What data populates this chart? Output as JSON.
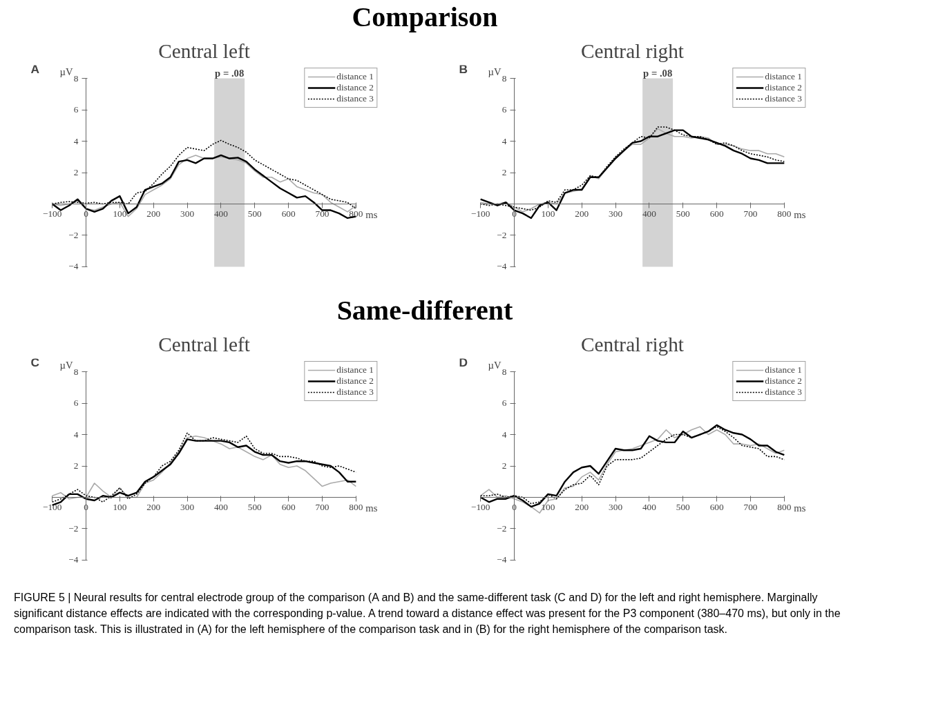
{
  "chart_data": [
    {
      "type": "line",
      "subtitle": "Comparison",
      "title": "Central left",
      "annotations": [
        "A"
      ],
      "x": [
        -100,
        -75,
        -50,
        -25,
        0,
        25,
        50,
        75,
        100,
        125,
        150,
        175,
        200,
        225,
        250,
        275,
        300,
        325,
        350,
        375,
        400,
        425,
        450,
        475,
        500,
        525,
        550,
        575,
        600,
        625,
        650,
        675,
        700,
        725,
        750,
        775,
        800
      ],
      "series": [
        {
          "name": "distance 1",
          "color": "#aaaaaa",
          "line_style": "solid",
          "values": [
            0,
            -0.1,
            0,
            0.2,
            -0.3,
            -0.4,
            -0.2,
            0,
            0.1,
            -0.8,
            -0.3,
            0.6,
            0.9,
            1.2,
            1.6,
            2.5,
            2.9,
            3.1,
            2.9,
            2.9,
            3.0,
            2.9,
            2.8,
            2.6,
            2.1,
            1.7,
            1.7,
            1.4,
            1.6,
            1.1,
            0.9,
            0.7,
            0.6,
            0.1,
            -0.2,
            -0.5,
            -0.1
          ]
        },
        {
          "name": "distance 2",
          "color": "#000000",
          "line_style": "solid",
          "values": [
            0,
            -0.4,
            -0.1,
            0.3,
            -0.3,
            -0.5,
            -0.3,
            0.2,
            0.5,
            -0.6,
            -0.2,
            0.9,
            1.1,
            1.3,
            1.7,
            2.7,
            2.8,
            2.6,
            2.9,
            2.9,
            3.1,
            2.9,
            2.95,
            2.7,
            2.2,
            1.8,
            1.4,
            1.0,
            0.7,
            0.4,
            0.5,
            0.1,
            -0.4,
            -0.4,
            -0.6,
            -0.9,
            -0.8
          ]
        },
        {
          "name": "distance 3",
          "color": "#000000",
          "line_style": "dotted",
          "values": [
            0,
            0.1,
            0.15,
            0.1,
            0.05,
            0.1,
            0,
            0.1,
            0.1,
            0,
            0.7,
            0.8,
            1.3,
            1.9,
            2.4,
            3.1,
            3.6,
            3.5,
            3.4,
            3.8,
            4.05,
            3.8,
            3.6,
            3.3,
            2.8,
            2.5,
            2.2,
            1.9,
            1.6,
            1.5,
            1.2,
            0.9,
            0.6,
            0.3,
            0.2,
            0.1,
            -0.3
          ]
        }
      ],
      "xlim": [
        -100,
        800
      ],
      "ylim": [
        -4,
        8
      ],
      "xticks": [
        -100,
        0,
        100,
        200,
        300,
        400,
        500,
        600,
        700,
        800
      ],
      "yticks": [
        -4,
        -2,
        2,
        4,
        6,
        8
      ],
      "xlabel": "ms",
      "ylabel": "µV",
      "grid": false,
      "legend": "top right",
      "bands": [
        {
          "axis": "x",
          "from": 380,
          "to": 470,
          "label": "p = .08",
          "color": "#d3d3d3"
        }
      ]
    },
    {
      "type": "line",
      "title": "Central right",
      "annotations": [
        "B"
      ],
      "x": [
        -100,
        -75,
        -50,
        -25,
        0,
        25,
        50,
        75,
        100,
        125,
        150,
        175,
        200,
        225,
        250,
        275,
        300,
        325,
        350,
        375,
        400,
        425,
        450,
        475,
        500,
        525,
        550,
        575,
        600,
        625,
        650,
        675,
        700,
        725,
        750,
        775,
        800
      ],
      "series": [
        {
          "name": "distance 1",
          "color": "#aaaaaa",
          "line_style": "solid",
          "values": [
            0.1,
            0,
            0,
            0.1,
            -0.2,
            -0.5,
            -0.3,
            0,
            0.1,
            0,
            0.7,
            0.8,
            0.95,
            1.8,
            1.6,
            2.3,
            3.0,
            3.4,
            3.8,
            3.8,
            4.2,
            4.8,
            4.5,
            4.3,
            4.3,
            4.2,
            4.3,
            4.2,
            3.8,
            3.8,
            3.7,
            3.5,
            3.4,
            3.4,
            3.2,
            3.2,
            3.0
          ]
        },
        {
          "name": "distance 2",
          "color": "#000000",
          "line_style": "solid",
          "values": [
            0.3,
            0.1,
            -0.1,
            0.1,
            -0.4,
            -0.6,
            -0.9,
            -0.1,
            0.1,
            -0.4,
            0.7,
            0.9,
            0.9,
            1.7,
            1.7,
            2.3,
            2.9,
            3.4,
            3.9,
            4.0,
            4.3,
            4.3,
            4.5,
            4.7,
            4.7,
            4.3,
            4.2,
            4.1,
            3.9,
            3.7,
            3.4,
            3.2,
            2.9,
            2.8,
            2.6,
            2.6,
            2.6
          ]
        },
        {
          "name": "distance 3",
          "color": "#000000",
          "line_style": "dotted",
          "values": [
            0,
            -0.1,
            0,
            -0.1,
            -0.2,
            -0.3,
            -0.4,
            -0.2,
            0.2,
            0.1,
            0.9,
            0.9,
            1.2,
            1.8,
            1.7,
            2.4,
            3.0,
            3.5,
            3.9,
            4.3,
            4.2,
            4.9,
            4.9,
            4.7,
            4.4,
            4.3,
            4.3,
            4.1,
            3.8,
            3.9,
            3.7,
            3.4,
            3.2,
            3.1,
            3.0,
            2.8,
            2.7
          ]
        }
      ],
      "xlim": [
        -100,
        800
      ],
      "ylim": [
        -4,
        8
      ],
      "xticks": [
        -100,
        0,
        100,
        200,
        300,
        400,
        500,
        600,
        700,
        800
      ],
      "yticks": [
        -4,
        -2,
        2,
        4,
        6,
        8
      ],
      "xlabel": "ms",
      "ylabel": "µV",
      "grid": false,
      "legend": "top right",
      "bands": [
        {
          "axis": "x",
          "from": 380,
          "to": 470,
          "label": "p = .08",
          "color": "#d3d3d3"
        }
      ]
    },
    {
      "type": "line",
      "subtitle": "Same-different",
      "title": "Central left",
      "annotations": [
        "C"
      ],
      "x": [
        -100,
        -75,
        -50,
        -25,
        0,
        25,
        50,
        75,
        100,
        125,
        150,
        175,
        200,
        225,
        250,
        275,
        300,
        325,
        350,
        375,
        400,
        425,
        450,
        475,
        500,
        525,
        550,
        575,
        600,
        625,
        650,
        675,
        700,
        725,
        750,
        775,
        800
      ],
      "series": [
        {
          "name": "distance 1",
          "color": "#aaaaaa",
          "line_style": "solid",
          "values": [
            0.1,
            0.3,
            -0.1,
            0,
            0,
            0.9,
            0.4,
            0,
            0.6,
            0,
            0,
            0.9,
            1.1,
            1.6,
            2.2,
            2.9,
            3.8,
            3.9,
            3.8,
            3.6,
            3.4,
            3.1,
            3.2,
            2.9,
            2.6,
            2.4,
            2.7,
            2.1,
            1.9,
            2.0,
            1.7,
            1.2,
            0.7,
            0.9,
            1.0,
            1.1,
            0.7
          ]
        },
        {
          "name": "distance 2",
          "color": "#000000",
          "line_style": "solid",
          "values": [
            -0.5,
            -0.3,
            0.2,
            0.2,
            -0.1,
            -0.2,
            0.1,
            0,
            0.3,
            0.1,
            0.3,
            1.0,
            1.3,
            1.7,
            2.1,
            2.8,
            3.7,
            3.6,
            3.6,
            3.6,
            3.6,
            3.5,
            3.2,
            3.3,
            2.9,
            2.7,
            2.7,
            2.3,
            2.2,
            2.3,
            2.3,
            2.2,
            2.1,
            2.0,
            1.6,
            1.0,
            1.0
          ]
        },
        {
          "name": "distance 3",
          "color": "#000000",
          "line_style": "dotted",
          "values": [
            -0.3,
            -0.1,
            0.2,
            0.5,
            0.1,
            0,
            -0.3,
            0.1,
            0.6,
            -0.1,
            0.2,
            0.9,
            1.3,
            2.0,
            2.3,
            3.0,
            4.1,
            3.6,
            3.6,
            3.8,
            3.7,
            3.6,
            3.5,
            3.9,
            3.1,
            2.8,
            2.8,
            2.6,
            2.6,
            2.5,
            2.3,
            2.3,
            2.0,
            1.9,
            2.0,
            1.8,
            1.6
          ]
        }
      ],
      "xlim": [
        -100,
        800
      ],
      "ylim": [
        -4,
        8
      ],
      "xticks": [
        -100,
        0,
        100,
        200,
        300,
        400,
        500,
        600,
        700,
        800
      ],
      "yticks": [
        -4,
        -2,
        2,
        4,
        6,
        8
      ],
      "xlabel": "ms",
      "ylabel": "µV",
      "grid": false,
      "legend": "top right"
    },
    {
      "type": "line",
      "title": "Central right",
      "annotations": [
        "D",
        "FIGURE 5 | Neural results for central electrode group of the comparison (A and B) and the same-different task (C and D) for the left and right hemisphere. Marginally significant distance effects are indicated with the corresponding p-value. A trend toward a distance effect was present for the P3 component (380–470 ms), but only in the comparison task. This is illustrated in (A) for the left hemisphere of the comparison task and in (B) for the right hemisphere of the comparison task."
      ],
      "x": [
        -100,
        -75,
        -50,
        -25,
        0,
        25,
        50,
        75,
        100,
        125,
        150,
        175,
        200,
        225,
        250,
        275,
        300,
        325,
        350,
        375,
        400,
        425,
        450,
        475,
        500,
        525,
        550,
        575,
        600,
        625,
        650,
        675,
        700,
        725,
        750,
        775,
        800
      ],
      "series": [
        {
          "name": "distance 1",
          "color": "#aaaaaa",
          "line_style": "solid",
          "values": [
            0.1,
            0.5,
            0,
            0.1,
            -0.1,
            -0.3,
            -0.6,
            -1.0,
            -0.2,
            -0.1,
            0.6,
            0.7,
            1.3,
            1.6,
            1.1,
            2.1,
            2.9,
            3.0,
            3.1,
            3.3,
            3.5,
            3.7,
            4.3,
            3.8,
            4.0,
            4.3,
            4.5,
            4.0,
            4.3,
            4.0,
            3.4,
            3.4,
            3.3,
            3.4,
            3.1,
            2.8,
            3.0
          ]
        },
        {
          "name": "distance 2",
          "color": "#000000",
          "line_style": "solid",
          "values": [
            0,
            -0.3,
            -0.1,
            -0.1,
            0.1,
            -0.2,
            -0.6,
            -0.4,
            0.2,
            0.1,
            1.0,
            1.6,
            1.9,
            2.0,
            1.5,
            2.3,
            3.1,
            3.0,
            3.0,
            3.1,
            3.9,
            3.6,
            3.5,
            3.5,
            4.2,
            3.8,
            4.0,
            4.2,
            4.6,
            4.3,
            4.1,
            4.0,
            3.7,
            3.3,
            3.3,
            2.9,
            2.7
          ]
        },
        {
          "name": "distance 3",
          "color": "#000000",
          "line_style": "dotted",
          "values": [
            0.1,
            0.1,
            0.2,
            0,
            0.1,
            0,
            -0.4,
            -0.3,
            0.2,
            -0.1,
            0.5,
            0.8,
            0.9,
            1.4,
            0.8,
            2.0,
            2.4,
            2.4,
            2.4,
            2.5,
            2.9,
            3.3,
            3.7,
            4.0,
            4.0,
            3.8,
            4.0,
            4.2,
            4.5,
            4.2,
            3.8,
            3.3,
            3.2,
            3.1,
            2.6,
            2.6,
            2.4
          ]
        }
      ],
      "xlim": [
        -100,
        800
      ],
      "ylim": [
        -4,
        8
      ],
      "xticks": [
        -100,
        0,
        100,
        200,
        300,
        400,
        500,
        600,
        700,
        800
      ],
      "yticks": [
        -4,
        -2,
        2,
        4,
        6,
        8
      ],
      "xlabel": "ms",
      "ylabel": "µV",
      "grid": false,
      "legend": "top right"
    }
  ]
}
